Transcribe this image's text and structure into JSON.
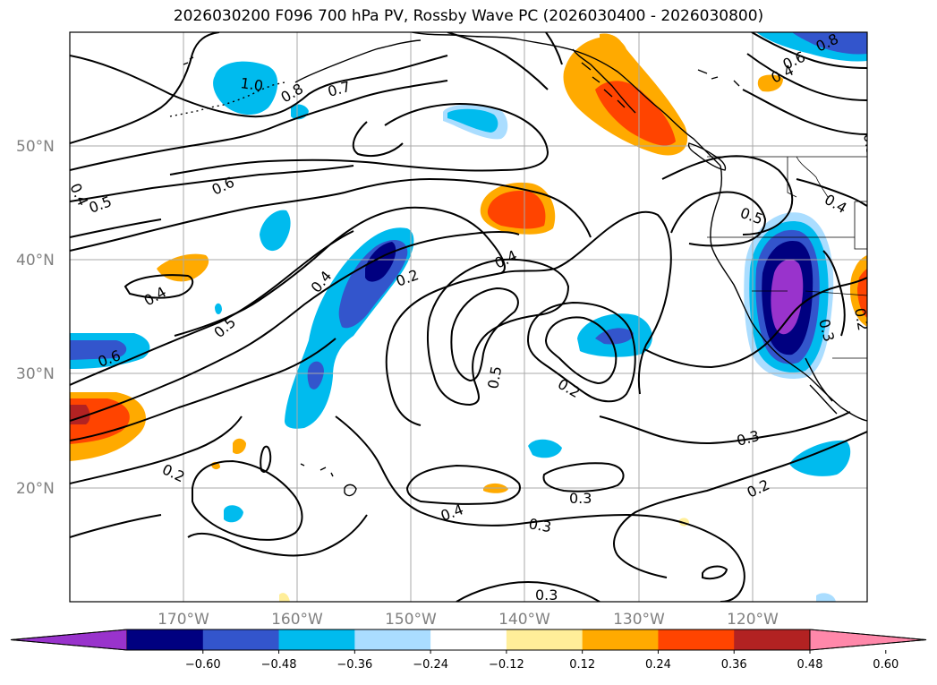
{
  "title": "2026030200 F096 700 hPa PV, Rossby Wave PC (2026030400 - 2026030800)",
  "lat_labels": [
    "50°N",
    "40°N",
    "30°N",
    "20°N"
  ],
  "lon_labels": [
    "170°W",
    "160°W",
    "150°W",
    "140°W",
    "130°W",
    "120°W"
  ],
  "contour_labels": [
    "1.0",
    "0.8",
    "0.7",
    "0.6",
    "0.5",
    "0.4",
    "0.4",
    "0.6",
    "0.5",
    "0.4",
    "0.2",
    "0.4",
    "0.5",
    "0.2",
    "0.2",
    "0.3",
    "0.3",
    "0.4",
    "0.3",
    "0.3",
    "0.2",
    "0.3",
    "0.5",
    "0.4",
    "0.4",
    "0.6",
    "0.8",
    "0.3",
    "0.2"
  ],
  "colorbar": {
    "ticks": [
      "−0.60",
      "−0.48",
      "−0.36",
      "−0.24",
      "−0.12",
      "0.12",
      "0.24",
      "0.36",
      "0.48",
      "0.60"
    ],
    "colors": [
      "#9933cc",
      "#000080",
      "#3355cc",
      "#00bbee",
      "#aaddff",
      "#ffffff",
      "#ffee99",
      "#ffaa00",
      "#ff4400",
      "#b22222",
      "#ff88aa"
    ]
  },
  "colors": {
    "purple": "#9933cc",
    "navy": "#000080",
    "blue": "#3355cc",
    "cyan": "#00bbee",
    "light_blue": "#aaddff",
    "yellow": "#ffee99",
    "orange": "#ffaa00",
    "red_orange": "#ff4400",
    "dark_red": "#b22222",
    "pink": "#ff88aa"
  }
}
